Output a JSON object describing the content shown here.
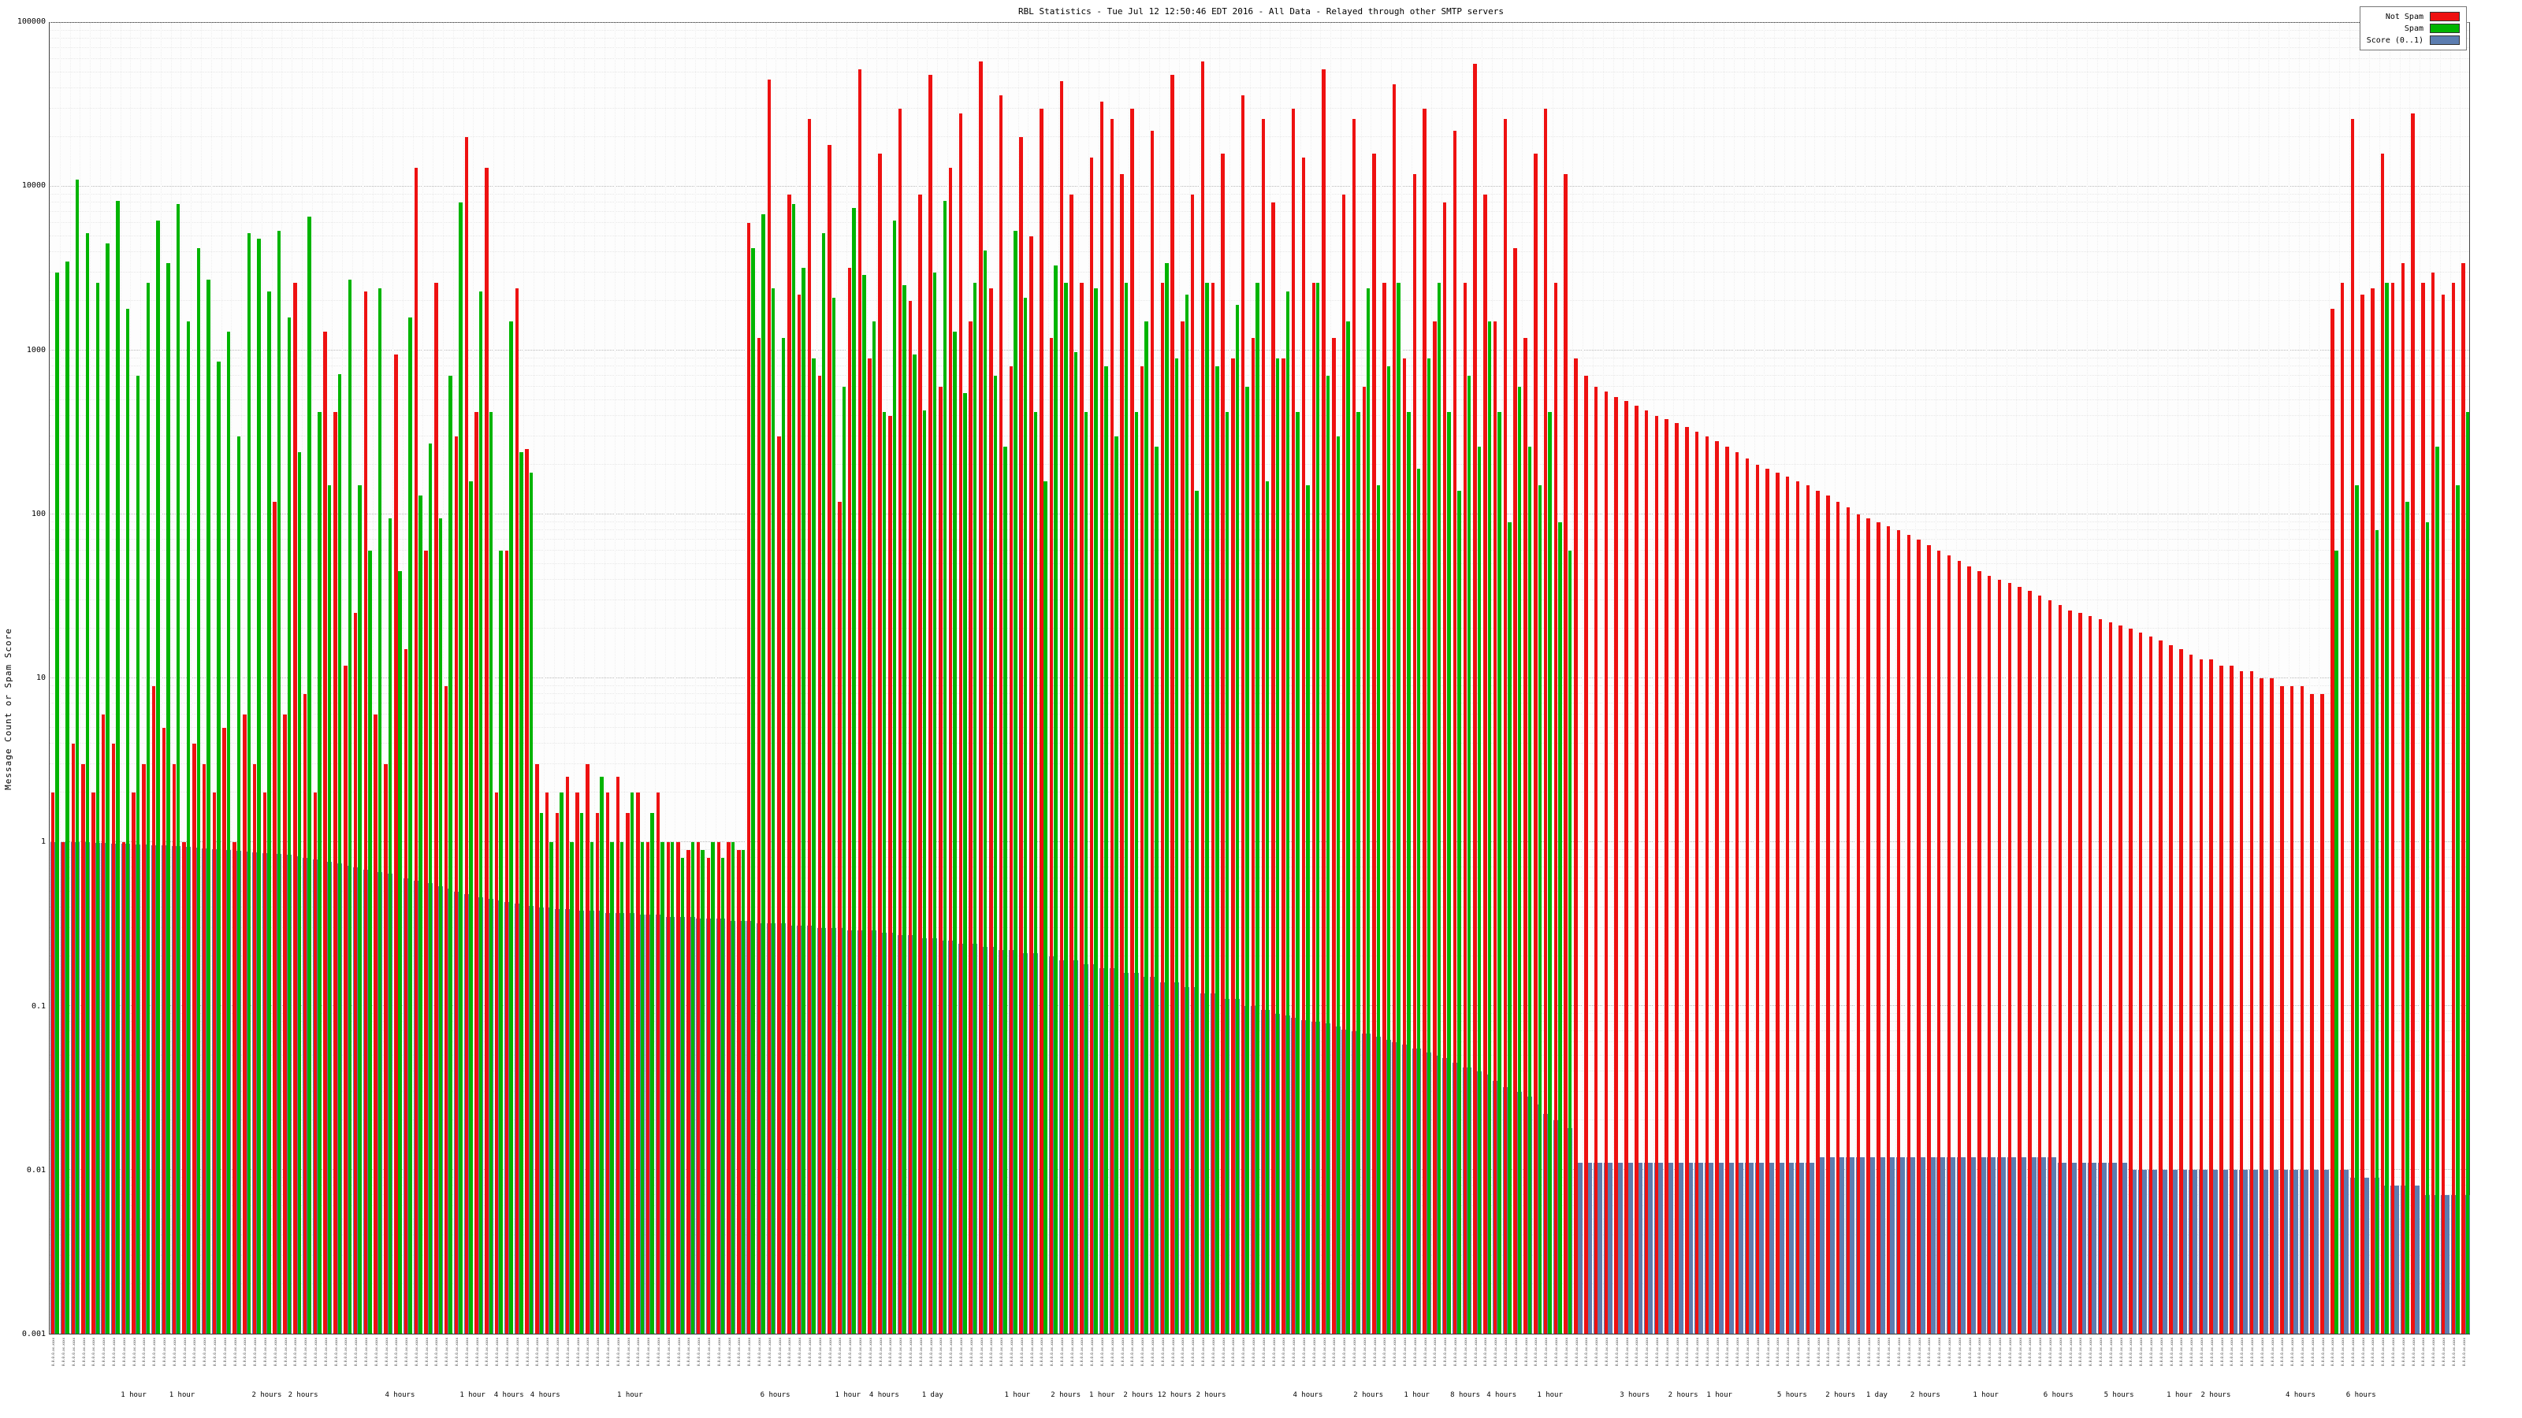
{
  "title": "RBL Statistics - Tue Jul 12 12:50:46 EDT 2016 - All Data - Relayed through other SMTP servers",
  "legend": [
    {
      "label": "Not Spam",
      "color": "#ee1111"
    },
    {
      "label": "Spam",
      "color": "#00b400"
    },
    {
      "label": "Score (0..1)",
      "color": "#5c7db0"
    }
  ],
  "y_axis": {
    "label": "Message Count or Spam Score",
    "scale": "log",
    "min": 0.001,
    "max": 100000,
    "tick_values": [
      0.001,
      0.01,
      0.1,
      1,
      10,
      100,
      1000,
      10000,
      100000
    ],
    "tick_labels": [
      "0.001",
      "0.01",
      "0.1",
      "1",
      "10",
      "100",
      "1000",
      "10000",
      "100000"
    ]
  },
  "x_axis": {
    "note": "Per-bar host/relay tick labels are present in the original but illegible at this resolution",
    "tick_placeholder": "0.0.0.0.xx.xxxx",
    "duration_labels": [
      {
        "text": "1 hour",
        "pos": 0.035
      },
      {
        "text": "1 hour",
        "pos": 0.055
      },
      {
        "text": "2 hours",
        "pos": 0.09
      },
      {
        "text": "2 hours",
        "pos": 0.105
      },
      {
        "text": "4 hours",
        "pos": 0.145
      },
      {
        "text": "1 hour",
        "pos": 0.175
      },
      {
        "text": "4 hours",
        "pos": 0.19
      },
      {
        "text": "4 hours",
        "pos": 0.205
      },
      {
        "text": "1 hour",
        "pos": 0.24
      },
      {
        "text": "6 hours",
        "pos": 0.3
      },
      {
        "text": "1 hour",
        "pos": 0.33
      },
      {
        "text": "4 hours",
        "pos": 0.345
      },
      {
        "text": "1 day",
        "pos": 0.365
      },
      {
        "text": "1 hour",
        "pos": 0.4
      },
      {
        "text": "2 hours",
        "pos": 0.42
      },
      {
        "text": "1 hour",
        "pos": 0.435
      },
      {
        "text": "2 hours",
        "pos": 0.45
      },
      {
        "text": "12 hours",
        "pos": 0.465
      },
      {
        "text": "2 hours",
        "pos": 0.48
      },
      {
        "text": "4 hours",
        "pos": 0.52
      },
      {
        "text": "2 hours",
        "pos": 0.545
      },
      {
        "text": "1 hour",
        "pos": 0.565
      },
      {
        "text": "8 hours",
        "pos": 0.585
      },
      {
        "text": "4 hours",
        "pos": 0.6
      },
      {
        "text": "1 hour",
        "pos": 0.62
      },
      {
        "text": "3 hours",
        "pos": 0.655
      },
      {
        "text": "2 hours",
        "pos": 0.675
      },
      {
        "text": "1 hour",
        "pos": 0.69
      },
      {
        "text": "5 hours",
        "pos": 0.72
      },
      {
        "text": "2 hours",
        "pos": 0.74
      },
      {
        "text": "1 day",
        "pos": 0.755
      },
      {
        "text": "2 hours",
        "pos": 0.775
      },
      {
        "text": "1 hour",
        "pos": 0.8
      },
      {
        "text": "6 hours",
        "pos": 0.83
      },
      {
        "text": "5 hours",
        "pos": 0.855
      },
      {
        "text": "1 hour",
        "pos": 0.88
      },
      {
        "text": "2 hours",
        "pos": 0.895
      },
      {
        "text": "4 hours",
        "pos": 0.93
      },
      {
        "text": "6 hours",
        "pos": 0.955
      }
    ]
  },
  "chart_data": {
    "type": "bar",
    "scale": "log",
    "ylim": [
      0.001,
      100000
    ],
    "title": "RBL Statistics - Tue Jul 12 12:50:46 EDT 2016 - All Data - Relayed through other SMTP servers",
    "xlabel": "",
    "ylabel": "Message Count or Spam Score",
    "legend_position": "top-right",
    "grid": true,
    "values_note": "Approximate values estimated from bar heights on log axis; ~650 original bars downsampled to 240",
    "series": [
      {
        "name": "Not Spam",
        "color": "#ee1111",
        "values": [
          2,
          1,
          4,
          3,
          2,
          6,
          4,
          1,
          2,
          3,
          9,
          5,
          3,
          1,
          4,
          3,
          2,
          5,
          1,
          6,
          3,
          2,
          120,
          6,
          2600,
          8,
          2,
          1300,
          420,
          12,
          25,
          2300,
          6,
          3,
          950,
          15,
          13000,
          60,
          2600,
          9,
          300,
          20000,
          420,
          13000,
          2,
          60,
          2400,
          250,
          3,
          2,
          1.5,
          2.5,
          2,
          3,
          1.5,
          2,
          2.5,
          1.5,
          2,
          1,
          2,
          1,
          1,
          0.9,
          1,
          0.8,
          1,
          1,
          0.9,
          6000,
          1200,
          45000,
          300,
          9000,
          2200,
          26000,
          700,
          18000,
          120,
          3200,
          52000,
          900,
          16000,
          400,
          30000,
          2000,
          9000,
          48000,
          600,
          13000,
          28000,
          1500,
          58000,
          2400,
          36000,
          800,
          20000,
          5000,
          30000,
          1200,
          44000,
          9000,
          2600,
          15000,
          33000,
          26000,
          12000,
          30000,
          800,
          22000,
          2600,
          48000,
          1500,
          9000,
          58000,
          2600,
          16000,
          900,
          36000,
          1200,
          26000,
          8000,
          900,
          30000,
          15000,
          2600,
          52000,
          1200,
          9000,
          26000,
          600,
          16000,
          2600,
          42000,
          900,
          12000,
          30000,
          1500,
          8000,
          22000,
          2600,
          56000,
          9000,
          1500,
          26000,
          4200,
          1200,
          16000,
          30000,
          2600,
          12000,
          900,
          700,
          600,
          560,
          520,
          490,
          460,
          430,
          400,
          380,
          360,
          340,
          320,
          300,
          280,
          260,
          240,
          220,
          200,
          190,
          180,
          170,
          160,
          150,
          140,
          130,
          120,
          110,
          100,
          95,
          90,
          85,
          80,
          75,
          70,
          65,
          60,
          56,
          52,
          48,
          45,
          42,
          40,
          38,
          36,
          34,
          32,
          30,
          28,
          26,
          25,
          24,
          23,
          22,
          21,
          20,
          19,
          18,
          17,
          16,
          15,
          14,
          13,
          13,
          12,
          12,
          11,
          11,
          10,
          10,
          9,
          9,
          9,
          8,
          8,
          1800,
          2600,
          26000,
          2200,
          2400,
          16000,
          2600,
          3400,
          28000,
          2600,
          3000,
          2200,
          2600,
          3400
        ]
      },
      {
        "name": "Spam",
        "color": "#00b400",
        "values": [
          3000,
          3500,
          11000,
          5200,
          2600,
          4500,
          8200,
          1800,
          700,
          2600,
          6200,
          3400,
          7800,
          1500,
          4200,
          2700,
          860,
          1300,
          300,
          5200,
          4800,
          2300,
          5400,
          1600,
          240,
          6600,
          420,
          150,
          720,
          2700,
          150,
          60,
          2400,
          95,
          45,
          1600,
          130,
          270,
          95,
          700,
          8000,
          160,
          2300,
          420,
          60,
          1500,
          240,
          180,
          1.5,
          1,
          2,
          1,
          1.5,
          1,
          2.5,
          1,
          1,
          2,
          1,
          1.5,
          1,
          1,
          0.8,
          1,
          0.9,
          1,
          0.8,
          1,
          0.9,
          4200,
          6800,
          2400,
          1200,
          7800,
          3200,
          900,
          5200,
          2100,
          600,
          7400,
          2900,
          1500,
          420,
          6200,
          2500,
          950,
          430,
          3000,
          8200,
          1300,
          550,
          2600,
          4100,
          700,
          260,
          5400,
          2100,
          420,
          160,
          3300,
          2600,
          980,
          420,
          2400,
          800,
          300,
          2600,
          420,
          1500,
          260,
          3400,
          900,
          2200,
          140,
          2600,
          800,
          420,
          1900,
          600,
          2600,
          160,
          900,
          2300,
          420,
          150,
          2600,
          700,
          300,
          1500,
          420,
          2400,
          150,
          800,
          2600,
          420,
          190,
          900,
          2600,
          420,
          140,
          700,
          260,
          1500,
          420,
          90,
          600,
          260,
          150,
          420,
          90,
          60,
          0,
          0,
          0,
          0,
          0,
          0,
          0,
          0,
          0,
          0,
          0,
          0,
          0,
          0,
          0,
          0,
          0,
          0,
          0,
          0,
          0,
          0,
          0,
          0,
          0,
          0,
          0,
          0,
          0,
          0,
          0,
          0,
          0,
          0,
          0,
          0,
          0,
          0,
          0,
          0,
          0,
          0,
          0,
          0,
          0,
          0,
          0,
          0,
          0,
          0,
          0,
          0,
          0,
          0,
          0,
          0,
          0,
          0,
          0,
          0,
          0,
          0,
          0,
          0,
          0,
          0,
          0,
          0,
          0,
          0,
          0,
          0,
          0,
          0,
          0,
          60,
          0,
          150,
          0,
          80,
          2600,
          0,
          120,
          0,
          90,
          260,
          0,
          150,
          420
        ]
      },
      {
        "name": "Score (0..1)",
        "color": "#5c7db0",
        "values": [
          1,
          1,
          1,
          1,
          0.99,
          0.99,
          0.98,
          0.98,
          0.97,
          0.97,
          0.96,
          0.96,
          0.95,
          0.94,
          0.93,
          0.92,
          0.91,
          0.9,
          0.89,
          0.88,
          0.87,
          0.86,
          0.85,
          0.84,
          0.82,
          0.8,
          0.78,
          0.76,
          0.74,
          0.72,
          0.7,
          0.68,
          0.66,
          0.64,
          0.62,
          0.6,
          0.58,
          0.56,
          0.54,
          0.52,
          0.5,
          0.48,
          0.46,
          0.45,
          0.44,
          0.43,
          0.42,
          0.41,
          0.4,
          0.4,
          0.39,
          0.39,
          0.38,
          0.38,
          0.38,
          0.37,
          0.37,
          0.37,
          0.36,
          0.36,
          0.36,
          0.35,
          0.35,
          0.35,
          0.34,
          0.34,
          0.34,
          0.33,
          0.33,
          0.33,
          0.32,
          0.32,
          0.32,
          0.31,
          0.31,
          0.31,
          0.3,
          0.3,
          0.3,
          0.29,
          0.29,
          0.29,
          0.28,
          0.28,
          0.27,
          0.27,
          0.26,
          0.26,
          0.25,
          0.25,
          0.24,
          0.24,
          0.23,
          0.23,
          0.22,
          0.22,
          0.21,
          0.21,
          0.2,
          0.2,
          0.19,
          0.19,
          0.18,
          0.18,
          0.17,
          0.17,
          0.16,
          0.16,
          0.15,
          0.15,
          0.14,
          0.14,
          0.13,
          0.13,
          0.12,
          0.12,
          0.11,
          0.11,
          0.1,
          0.1,
          0.095,
          0.09,
          0.088,
          0.085,
          0.082,
          0.08,
          0.078,
          0.075,
          0.072,
          0.07,
          0.068,
          0.065,
          0.062,
          0.06,
          0.058,
          0.055,
          0.052,
          0.05,
          0.048,
          0.045,
          0.042,
          0.04,
          0.038,
          0.035,
          0.032,
          0.03,
          0.028,
          0.025,
          0.022,
          0.02,
          0.018,
          0.011,
          0.011,
          0.011,
          0.011,
          0.011,
          0.011,
          0.011,
          0.011,
          0.011,
          0.011,
          0.011,
          0.011,
          0.011,
          0.011,
          0.011,
          0.011,
          0.011,
          0.011,
          0.011,
          0.011,
          0.011,
          0.011,
          0.011,
          0.011,
          0.012,
          0.012,
          0.012,
          0.012,
          0.012,
          0.012,
          0.012,
          0.012,
          0.012,
          0.012,
          0.012,
          0.012,
          0.012,
          0.012,
          0.012,
          0.012,
          0.012,
          0.012,
          0.012,
          0.012,
          0.012,
          0.012,
          0.012,
          0.012,
          0.011,
          0.011,
          0.011,
          0.011,
          0.011,
          0.011,
          0.011,
          0.01,
          0.01,
          0.01,
          0.01,
          0.01,
          0.01,
          0.01,
          0.01,
          0.01,
          0.01,
          0.01,
          0.01,
          0.01,
          0.01,
          0.01,
          0.01,
          0.01,
          0.01,
          0.01,
          0.01,
          0.01,
          0.01,
          0.009,
          0.009,
          0.009,
          0.008,
          0.008,
          0.008,
          0.008,
          0.007,
          0.007,
          0.007,
          0.007,
          0.007
        ]
      }
    ]
  }
}
